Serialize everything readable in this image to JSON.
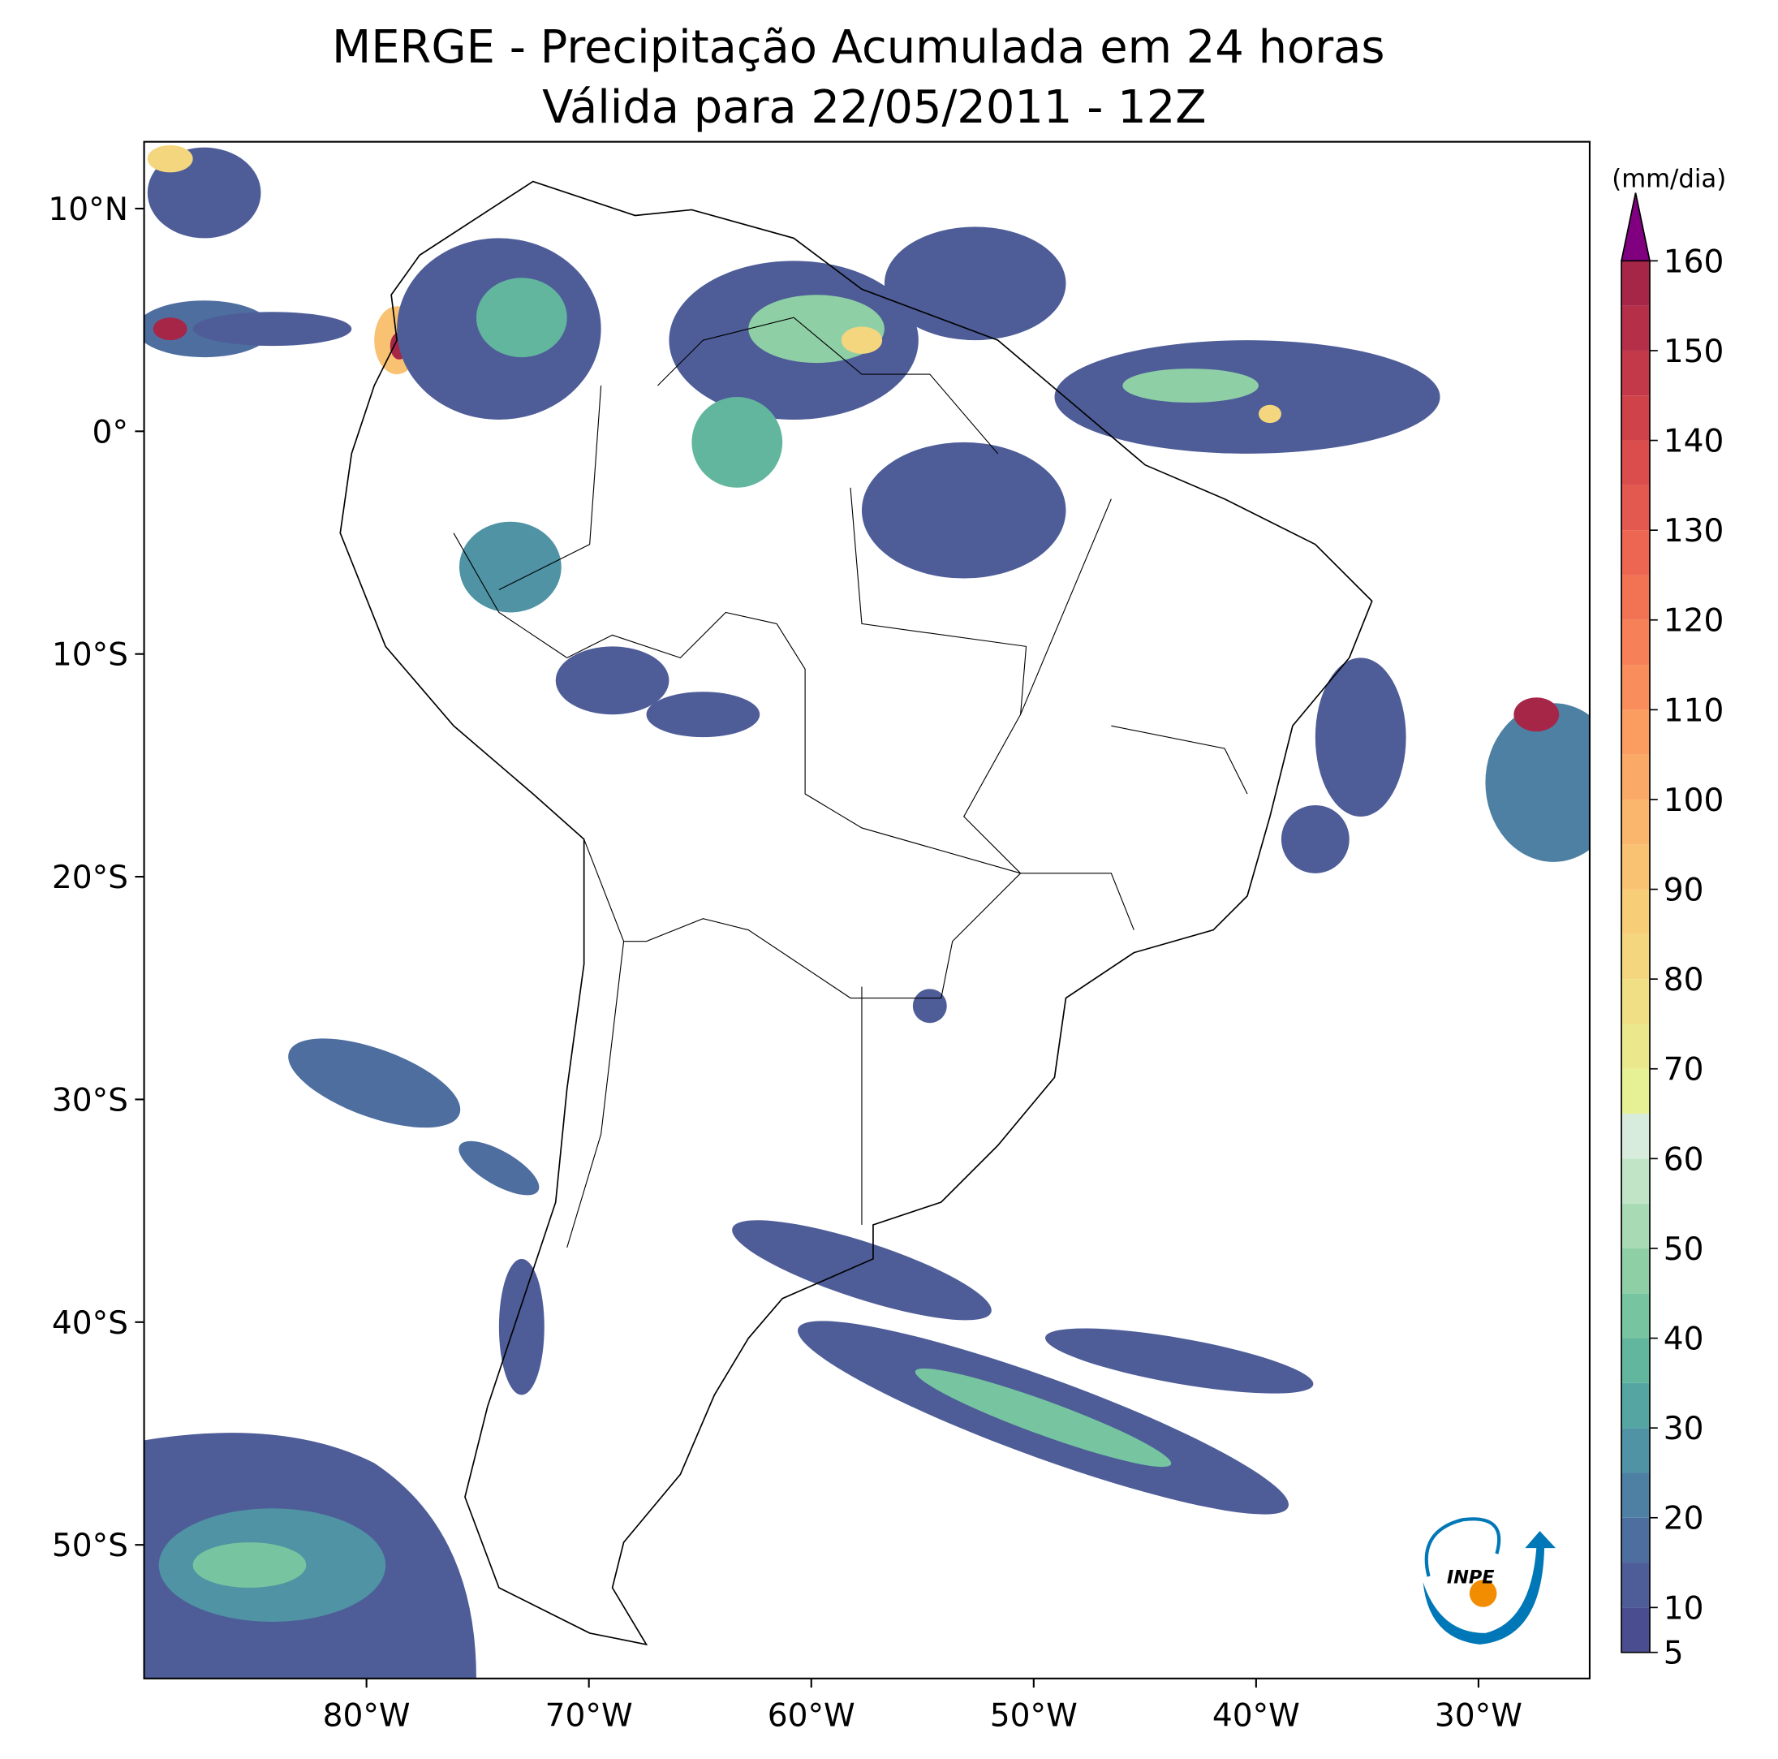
{
  "chart_data": {
    "type": "map",
    "title": "MERGE - Precipitação Acumulada em 24 horas",
    "subtitle": "Válida para 22/05/2011 - 12Z",
    "xlim": [
      -90,
      -25
    ],
    "ylim": [
      -56,
      13
    ],
    "xticks": [
      {
        "value": -80,
        "label": "80°W"
      },
      {
        "value": -70,
        "label": "70°W"
      },
      {
        "value": -60,
        "label": "60°W"
      },
      {
        "value": -50,
        "label": "50°W"
      },
      {
        "value": -40,
        "label": "40°W"
      },
      {
        "value": -30,
        "label": "30°W"
      }
    ],
    "yticks": [
      {
        "value": 10,
        "label": "10°N"
      },
      {
        "value": 0,
        "label": "0°"
      },
      {
        "value": -10,
        "label": "10°S"
      },
      {
        "value": -20,
        "label": "20°S"
      },
      {
        "value": -30,
        "label": "30°S"
      },
      {
        "value": -40,
        "label": "40°S"
      },
      {
        "value": -50,
        "label": "50°S"
      }
    ],
    "colorbar": {
      "label": "(mm/dia)",
      "levels": [
        5,
        10,
        15,
        20,
        25,
        30,
        35,
        40,
        45,
        50,
        55,
        60,
        65,
        70,
        75,
        80,
        85,
        90,
        95,
        100,
        105,
        110,
        115,
        120,
        125,
        130,
        135,
        140,
        145,
        150,
        155,
        160
      ],
      "colors": [
        "#4b4d91",
        "#4e5d98",
        "#4f6ea0",
        "#4e80a3",
        "#4f93a4",
        "#55a6a2",
        "#63b69e",
        "#76c4a0",
        "#8fcfa6",
        "#a8dbb4",
        "#c1e4c6",
        "#d7ecdc",
        "#e6f095",
        "#ebe78c",
        "#f0df85",
        "#f4d67e",
        "#f7cd78",
        "#f9c272",
        "#fab66c",
        "#fba966",
        "#fb9c61",
        "#f98e5c",
        "#f68158",
        "#f27354",
        "#ec6651",
        "#e4594f",
        "#da4d4c",
        "#cf424a",
        "#c33949",
        "#b52f48",
        "#a62648"
      ],
      "over_color": "#800080",
      "ticks": [
        5,
        10,
        20,
        30,
        40,
        50,
        60,
        70,
        80,
        90,
        100,
        110,
        120,
        130,
        140,
        150,
        160
      ]
    },
    "logo": "INPE"
  }
}
